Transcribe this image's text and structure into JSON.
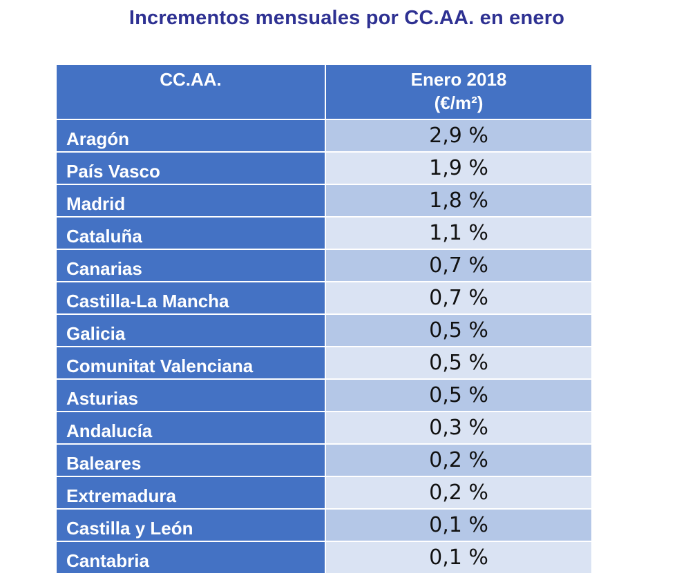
{
  "title": "Incrementos mensuales por CC.AA. en enero",
  "table": {
    "headers": {
      "region": "CC.AA.",
      "value_line1": "Enero 2018",
      "value_line2": "(€/m²)"
    },
    "rows": [
      {
        "region": "Aragón",
        "value": "2,9 %"
      },
      {
        "region": "País Vasco",
        "value": "1,9 %"
      },
      {
        "region": "Madrid",
        "value": "1,8 %"
      },
      {
        "region": "Cataluña",
        "value": "1,1 %"
      },
      {
        "region": "Canarias",
        "value": "0,7 %"
      },
      {
        "region": "Castilla-La Mancha",
        "value": "0,7 %"
      },
      {
        "region": "Galicia",
        "value": "0,5 %"
      },
      {
        "region": "Comunitat Valenciana",
        "value": "0,5 %"
      },
      {
        "region": "Asturias",
        "value": "0,5 %"
      },
      {
        "region": "Andalucía",
        "value": "0,3 %"
      },
      {
        "region": "Baleares",
        "value": "0,2 %"
      },
      {
        "region": "Extremadura",
        "value": "0,2 %"
      },
      {
        "region": "Castilla y León",
        "value": "0,1 %"
      },
      {
        "region": "Cantabria",
        "value": "0,1 %"
      }
    ]
  },
  "colors": {
    "title": "#2e3192",
    "header_bg": "#4472c4",
    "row_odd_bg": "#b4c7e7",
    "row_even_bg": "#dae3f3"
  }
}
